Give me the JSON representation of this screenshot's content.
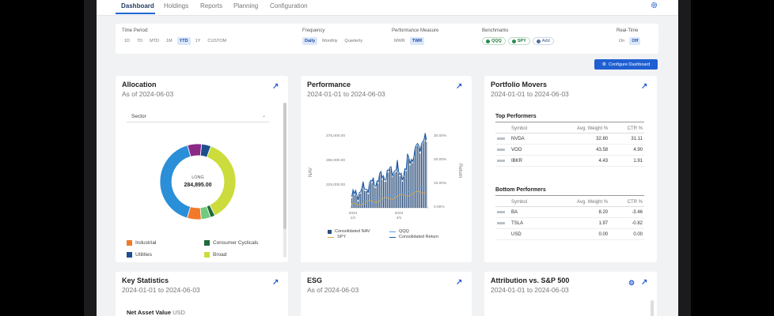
{
  "nav": {
    "tabs": [
      "Dashboard",
      "Holdings",
      "Reports",
      "Planning",
      "Configuration"
    ],
    "active_tab": "Dashboard"
  },
  "filters": {
    "time_period": {
      "label": "Time Period:",
      "options": [
        "1D",
        "7D",
        "MTD",
        "1M",
        "YTD",
        "1Y",
        "CUSTOM"
      ],
      "selected": "YTD"
    },
    "frequency": {
      "label": "Frequency",
      "options": [
        "Daily",
        "Monthly",
        "Quarterly"
      ],
      "selected": "Daily"
    },
    "performance_measure": {
      "label": "Performance Measure",
      "options": [
        "MWR",
        "TWR"
      ],
      "selected": "TWR"
    },
    "benchmarks": {
      "label": "Benchmarks",
      "items": [
        "QQQ",
        "SPY"
      ],
      "add_label": "Add"
    },
    "realtime": {
      "label": "Real-Time",
      "options": [
        "On",
        "Off"
      ],
      "selected": "Off"
    }
  },
  "configure_button": "Configure Dashboard",
  "allocation": {
    "title": "Allocation",
    "subtitle": "As of 2024-06-03",
    "select_value": "Sector",
    "center_label": "LONG",
    "center_value": "284,895.00",
    "legend": [
      {
        "name": "Industrial",
        "color": "#f07a2a"
      },
      {
        "name": "Consumer Cyclicals",
        "color": "#1f6b3a"
      },
      {
        "name": "Utilities",
        "color": "#1c4f8f"
      },
      {
        "name": "Broad",
        "color": "#cbdc3c"
      }
    ],
    "slices": [
      {
        "color": "#cbdc3c",
        "fraction": 0.37
      },
      {
        "color": "#1f6b3a",
        "fraction": 0.02
      },
      {
        "color": "#6fcb7f",
        "fraction": 0.04
      },
      {
        "color": "#f07a2a",
        "fraction": 0.06
      },
      {
        "color": "#2a8fd8",
        "fraction": 0.41
      },
      {
        "color": "#8a2a86",
        "fraction": 0.06
      },
      {
        "color": "#1c4f8f",
        "fraction": 0.04
      }
    ]
  },
  "performance": {
    "title": "Performance",
    "subtitle": "2024-01-01 to 2024-06-03",
    "left_axis_label": "NAV",
    "right_axis_label": "Return",
    "left_ticks": [
      "275,000.00",
      "250,000.00",
      "225,000.00"
    ],
    "right_ticks": [
      "30.00%",
      "20.00%",
      "10.00%",
      "0.00%"
    ],
    "x_ticks": [
      "2024\n1/1",
      "2024\n4/1"
    ],
    "legend": [
      {
        "name": "Consolidated NAV",
        "color": "#2d4f7c"
      },
      {
        "name": "QQQ",
        "color": "#5aa0e8"
      },
      {
        "name": "SPY",
        "color": "#e3a83a"
      },
      {
        "name": "Consolidated Return",
        "color": "#1a5ca8"
      }
    ]
  },
  "portfolio_movers": {
    "title": "Portfolio Movers",
    "subtitle": "2024-01-01 to 2024-06-03",
    "top_title": "Top Performers",
    "bottom_title": "Bottom Performers",
    "columns": [
      "Symbol",
      "Avg. Weight %",
      "CTR %"
    ],
    "top": [
      {
        "symbol": "NVDA",
        "weight": "32.80",
        "ctr": "31.11",
        "sign": "pos"
      },
      {
        "symbol": "VOO",
        "weight": "43.58",
        "ctr": "4.90",
        "sign": "pos"
      },
      {
        "symbol": "IBKR",
        "weight": "4.43",
        "ctr": "1.91",
        "sign": "pos"
      }
    ],
    "bottom": [
      {
        "symbol": "BA",
        "weight": "8.20",
        "ctr": "-3.46",
        "sign": "neg"
      },
      {
        "symbol": "TSLA",
        "weight": "1.97",
        "ctr": "-0.82",
        "sign": "neg"
      },
      {
        "symbol": "USD",
        "weight": "0.00",
        "ctr": "0.00",
        "sign": "zero"
      }
    ]
  },
  "key_statistics": {
    "title": "Key Statistics",
    "subtitle": "2024-01-01 to 2024-06-03",
    "nav_label": "Net Asset Value",
    "nav_unit": "USD"
  },
  "esg": {
    "title": "ESG",
    "subtitle": "As of 2024-06-03"
  },
  "attribution": {
    "title": "Attribution vs. S&P 500",
    "subtitle": "2024-01-01 to 2024-06-03"
  }
}
